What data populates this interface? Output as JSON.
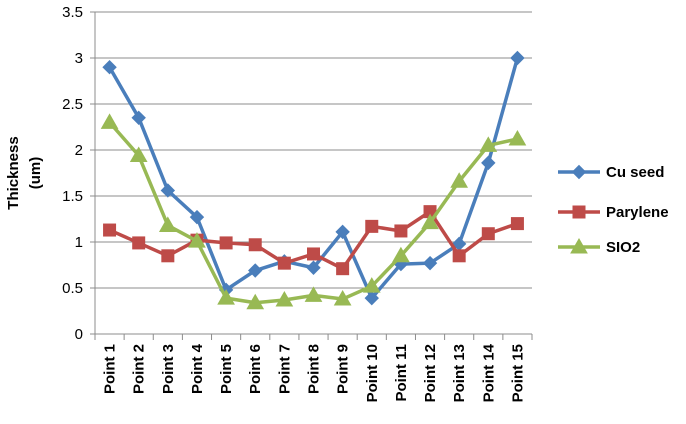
{
  "chart_data": {
    "type": "line",
    "ylabel_lines": [
      "Thickness",
      "(um)"
    ],
    "categories": [
      "Point 1",
      "Point 2",
      "Point 3",
      "Point 4",
      "Point 5",
      "Point 6",
      "Point 7",
      "Point 8",
      "Point 9",
      "Point 10",
      "Point 11",
      "Point 12",
      "Point 13",
      "Point 14",
      "Point 15"
    ],
    "ylim": [
      0,
      3.5
    ],
    "yticks": [
      "0",
      "0.5",
      "1",
      "1.5",
      "2",
      "2.5",
      "3",
      "3.5"
    ],
    "grid": true,
    "legend_position": "right",
    "series": [
      {
        "name": "Cu seed",
        "color": "#4a7ebb",
        "marker": "diamond",
        "values": [
          2.9,
          2.35,
          1.56,
          1.27,
          0.48,
          0.69,
          0.79,
          0.72,
          1.11,
          0.39,
          0.76,
          0.77,
          0.98,
          1.86,
          3.0
        ]
      },
      {
        "name": "Parylene",
        "color": "#be4b48",
        "marker": "square",
        "values": [
          1.13,
          0.99,
          0.85,
          1.02,
          0.99,
          0.97,
          0.77,
          0.87,
          0.71,
          1.17,
          1.12,
          1.33,
          0.85,
          1.09,
          1.2
        ]
      },
      {
        "name": "SIO2",
        "color": "#98b954",
        "marker": "triangle",
        "values": [
          2.3,
          1.94,
          1.18,
          1.01,
          0.39,
          0.34,
          0.37,
          0.42,
          0.38,
          0.52,
          0.85,
          1.21,
          1.66,
          2.05,
          2.12
        ]
      }
    ]
  }
}
